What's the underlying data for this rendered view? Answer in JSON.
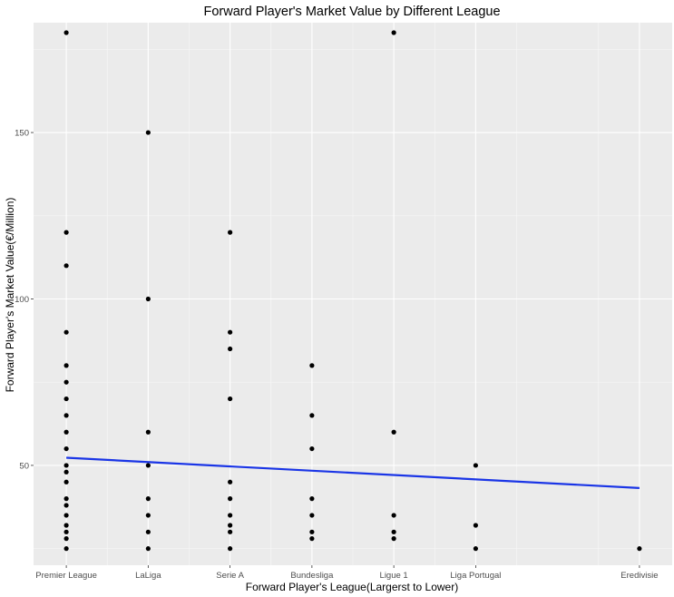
{
  "chart_data": {
    "type": "scatter",
    "title": "Forward Player's Market Value by Different League",
    "xlabel": "Forward Player's League(Largerst to Lower)",
    "ylabel": "Forward Player's Market Value(€/Million)",
    "categories": [
      "Premier League",
      "LaLiga",
      "Serie A",
      "Bundesliga",
      "Ligue 1",
      "Liga Portugal",
      "",
      "Eredivisie"
    ],
    "x_positions": [
      1,
      2,
      3,
      4,
      5,
      6,
      7,
      8
    ],
    "xlim": [
      0.6,
      8.4
    ],
    "ylim": [
      20,
      183
    ],
    "y_ticks": [
      50,
      100,
      150
    ],
    "grid": true,
    "background": "#ebebeb",
    "point_color": "#000000",
    "trend_color": "#1a35e6",
    "points": [
      {
        "x": 1,
        "y": 180
      },
      {
        "x": 1,
        "y": 120
      },
      {
        "x": 1,
        "y": 110
      },
      {
        "x": 1,
        "y": 90
      },
      {
        "x": 1,
        "y": 80
      },
      {
        "x": 1,
        "y": 75
      },
      {
        "x": 1,
        "y": 70
      },
      {
        "x": 1,
        "y": 65
      },
      {
        "x": 1,
        "y": 60
      },
      {
        "x": 1,
        "y": 55
      },
      {
        "x": 1,
        "y": 50
      },
      {
        "x": 1,
        "y": 48
      },
      {
        "x": 1,
        "y": 45
      },
      {
        "x": 1,
        "y": 40
      },
      {
        "x": 1,
        "y": 38
      },
      {
        "x": 1,
        "y": 35
      },
      {
        "x": 1,
        "y": 32
      },
      {
        "x": 1,
        "y": 30
      },
      {
        "x": 1,
        "y": 28
      },
      {
        "x": 1,
        "y": 25
      },
      {
        "x": 2,
        "y": 150
      },
      {
        "x": 2,
        "y": 100
      },
      {
        "x": 2,
        "y": 60
      },
      {
        "x": 2,
        "y": 50
      },
      {
        "x": 2,
        "y": 40
      },
      {
        "x": 2,
        "y": 35
      },
      {
        "x": 2,
        "y": 30
      },
      {
        "x": 2,
        "y": 25
      },
      {
        "x": 3,
        "y": 120
      },
      {
        "x": 3,
        "y": 90
      },
      {
        "x": 3,
        "y": 85
      },
      {
        "x": 3,
        "y": 70
      },
      {
        "x": 3,
        "y": 45
      },
      {
        "x": 3,
        "y": 40
      },
      {
        "x": 3,
        "y": 35
      },
      {
        "x": 3,
        "y": 32
      },
      {
        "x": 3,
        "y": 30
      },
      {
        "x": 3,
        "y": 25
      },
      {
        "x": 4,
        "y": 80
      },
      {
        "x": 4,
        "y": 65
      },
      {
        "x": 4,
        "y": 55
      },
      {
        "x": 4,
        "y": 40
      },
      {
        "x": 4,
        "y": 35
      },
      {
        "x": 4,
        "y": 30
      },
      {
        "x": 4,
        "y": 28
      },
      {
        "x": 5,
        "y": 180
      },
      {
        "x": 5,
        "y": 60
      },
      {
        "x": 5,
        "y": 35
      },
      {
        "x": 5,
        "y": 30
      },
      {
        "x": 5,
        "y": 28
      },
      {
        "x": 6,
        "y": 50
      },
      {
        "x": 6,
        "y": 32
      },
      {
        "x": 6,
        "y": 25
      },
      {
        "x": 8,
        "y": 25
      }
    ],
    "trend_line": {
      "x": [
        1,
        8
      ],
      "y": [
        52.3,
        43.2
      ]
    }
  }
}
